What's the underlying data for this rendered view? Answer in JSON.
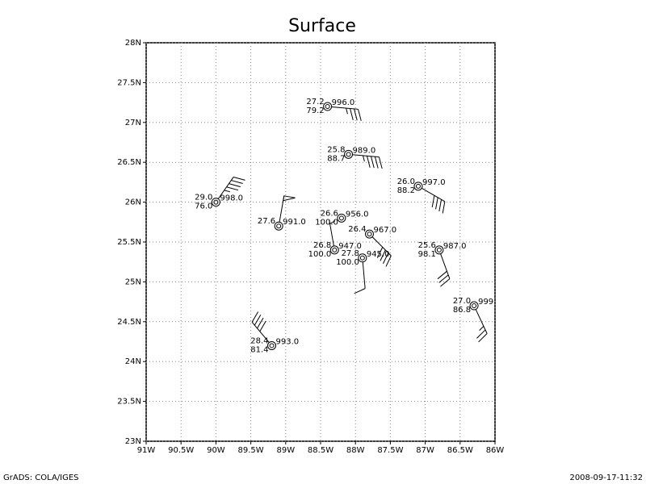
{
  "chart_data": {
    "type": "station",
    "title": "Surface",
    "footer_left": "GrADS: COLA/IGES",
    "footer_right": "2008-09-17-11:32",
    "xlim": [
      -91,
      -86
    ],
    "ylim": [
      23,
      28
    ],
    "xticks": [
      {
        "value": -91,
        "label": "91W"
      },
      {
        "value": -90.5,
        "label": "90.5W"
      },
      {
        "value": -90,
        "label": "90W"
      },
      {
        "value": -89.5,
        "label": "89.5W"
      },
      {
        "value": -89,
        "label": "89W"
      },
      {
        "value": -88.5,
        "label": "88.5W"
      },
      {
        "value": -88,
        "label": "88W"
      },
      {
        "value": -87.5,
        "label": "87.5W"
      },
      {
        "value": -87,
        "label": "87W"
      },
      {
        "value": -86.5,
        "label": "86.5W"
      },
      {
        "value": -86,
        "label": "86W"
      }
    ],
    "yticks": [
      {
        "value": 23,
        "label": "23N"
      },
      {
        "value": 23.5,
        "label": "23.5N"
      },
      {
        "value": 24,
        "label": "24N"
      },
      {
        "value": 24.5,
        "label": "24.5N"
      },
      {
        "value": 25,
        "label": "25N"
      },
      {
        "value": 25.5,
        "label": "25.5N"
      },
      {
        "value": 26,
        "label": "26N"
      },
      {
        "value": 26.5,
        "label": "26.5N"
      },
      {
        "value": 27,
        "label": "27N"
      },
      {
        "value": 27.5,
        "label": "27.5N"
      },
      {
        "value": 28,
        "label": "28N"
      }
    ],
    "grid": true,
    "color": "#000000",
    "x": [
      -88.4,
      -88.1,
      -87.1,
      -90.0,
      -89.1,
      -88.2,
      -87.8,
      -88.3,
      -87.9,
      -86.8,
      -86.3,
      -89.2
    ],
    "y": [
      27.2,
      26.6,
      26.2,
      26.0,
      25.7,
      25.8,
      25.6,
      25.4,
      25.3,
      25.4,
      24.7,
      24.2
    ],
    "temperature": {
      "values": [
        27.2,
        25.8,
        26.0,
        29.0,
        27.6,
        26.6,
        26.4,
        26.8,
        27.8,
        25.6,
        27.0,
        28.4
      ],
      "value_labels": [
        "27.2",
        "25.8",
        "26.0",
        "29.0",
        "27.6",
        "26.6",
        "26.4",
        "26.8",
        "27.8",
        "25.6",
        "27.0",
        "28.4"
      ]
    },
    "humidity": {
      "values": [
        79.2,
        88.7,
        88.2,
        76.0,
        null,
        100.0,
        null,
        100.0,
        100.0,
        98.1,
        86.8,
        81.4
      ],
      "value_labels": [
        "79.2",
        "88.7",
        "88.2",
        "76.0",
        null,
        "100.0",
        null,
        "100.0",
        "100.0",
        "98.1",
        "86.8",
        "81.4"
      ]
    },
    "pressure": {
      "values": [
        996.0,
        989.0,
        997.0,
        998.0,
        991.0,
        956.0,
        967.0,
        947.0,
        945.0,
        987.0,
        999,
        993.0
      ],
      "value_labels": [
        "996.0",
        "989.0",
        "997.0",
        "998.0",
        "991.0",
        "956.0",
        "967.0",
        "947.0",
        "945.0",
        "987.0",
        "999",
        "993.0"
      ]
    },
    "wind_direction": [
      95,
      95,
      120,
      35,
      10,
      null,
      135,
      350,
      175,
      160,
      155,
      320
    ],
    "wind_speed": [
      35,
      45,
      40,
      45,
      50,
      null,
      40,
      5,
      10,
      30,
      25,
      40
    ]
  }
}
